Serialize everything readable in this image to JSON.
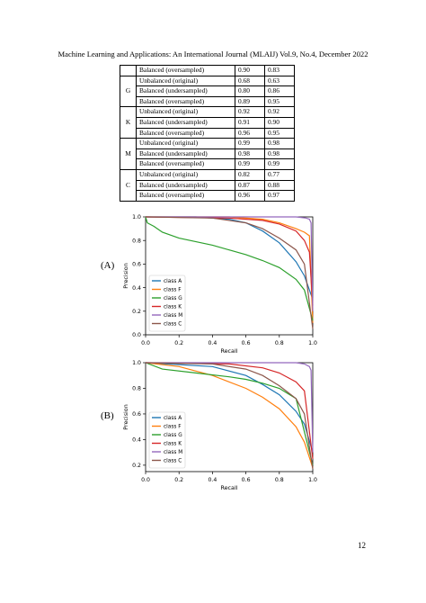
{
  "header": "Machine Learning and Applications: An International Journal (MLAIJ) Vol.9, No.4, December 2022",
  "table": {
    "rows": [
      {
        "group": "",
        "method": "Balanced (oversampled)",
        "v1": "0.90",
        "v2": "0.83"
      },
      {
        "group": "G",
        "method": "Unbalanced (original)",
        "v1": "0.68",
        "v2": "0.63"
      },
      {
        "group": "",
        "method": "Balanced (undersampled)",
        "v1": "0.80",
        "v2": "0.86"
      },
      {
        "group": "",
        "method": "Balanced (oversampled)",
        "v1": "0.89",
        "v2": "0.95"
      },
      {
        "group": "K",
        "method": "Unbalanced (original)",
        "v1": "0.92",
        "v2": "0.92"
      },
      {
        "group": "",
        "method": "Balanced (undersampled)",
        "v1": "0.91",
        "v2": "0.90"
      },
      {
        "group": "",
        "method": "Balanced (oversampled)",
        "v1": "0.96",
        "v2": "0.95"
      },
      {
        "group": "M",
        "method": "Unbalanced (original)",
        "v1": "0.99",
        "v2": "0.98"
      },
      {
        "group": "",
        "method": "Balanced (undersampled)",
        "v1": "0.98",
        "v2": "0.98"
      },
      {
        "group": "",
        "method": "Balanced (oversampled)",
        "v1": "0.99",
        "v2": "0.99"
      },
      {
        "group": "C",
        "method": "Unbalanced (original)",
        "v1": "0.82",
        "v2": "0.77"
      },
      {
        "group": "",
        "method": "Balanced (undersampled)",
        "v1": "0.87",
        "v2": "0.88"
      },
      {
        "group": "",
        "method": "Balanced (oversampled)",
        "v1": "0.96",
        "v2": "0.97"
      }
    ]
  },
  "labels": {
    "a": "(A)",
    "b": "(B)"
  },
  "page_number": "12",
  "chart_data": [
    {
      "type": "line",
      "xlabel": "Recall",
      "ylabel": "Precision",
      "xlim": [
        0.0,
        1.0
      ],
      "ylim": [
        0.0,
        1.0
      ],
      "xticks": [
        "0.0",
        "0.2",
        "0.4",
        "0.6",
        "0.8",
        "1.0"
      ],
      "yticks": [
        "0.0",
        "0.2",
        "0.4",
        "0.6",
        "0.8",
        "1.0"
      ],
      "legend_position": "lower-left",
      "series": [
        {
          "name": "class A",
          "color": "#1f77b4",
          "points": [
            [
              0,
              1
            ],
            [
              0.3,
              1
            ],
            [
              0.5,
              0.98
            ],
            [
              0.6,
              0.95
            ],
            [
              0.7,
              0.88
            ],
            [
              0.8,
              0.78
            ],
            [
              0.9,
              0.62
            ],
            [
              0.95,
              0.5
            ],
            [
              1.0,
              0.3
            ]
          ]
        },
        {
          "name": "class F",
          "color": "#ff7f0e",
          "points": [
            [
              0,
              1
            ],
            [
              0.5,
              1
            ],
            [
              0.7,
              0.98
            ],
            [
              0.8,
              0.95
            ],
            [
              0.9,
              0.9
            ],
            [
              0.95,
              0.87
            ],
            [
              0.98,
              0.84
            ],
            [
              1.0,
              0.1
            ]
          ]
        },
        {
          "name": "class G",
          "color": "#2ca02c",
          "points": [
            [
              0,
              1
            ],
            [
              0.01,
              0.95
            ],
            [
              0.05,
              0.92
            ],
            [
              0.1,
              0.87
            ],
            [
              0.2,
              0.82
            ],
            [
              0.4,
              0.76
            ],
            [
              0.5,
              0.72
            ],
            [
              0.6,
              0.68
            ],
            [
              0.7,
              0.63
            ],
            [
              0.8,
              0.57
            ],
            [
              0.9,
              0.47
            ],
            [
              0.95,
              0.38
            ],
            [
              1.0,
              0.12
            ]
          ]
        },
        {
          "name": "class K",
          "color": "#d62728",
          "points": [
            [
              0,
              1
            ],
            [
              0.5,
              0.99
            ],
            [
              0.7,
              0.97
            ],
            [
              0.8,
              0.94
            ],
            [
              0.9,
              0.88
            ],
            [
              0.95,
              0.8
            ],
            [
              0.98,
              0.7
            ],
            [
              1.0,
              0.25
            ]
          ]
        },
        {
          "name": "class M",
          "color": "#9467bd",
          "points": [
            [
              0,
              1
            ],
            [
              0.9,
              1
            ],
            [
              0.96,
              0.99
            ],
            [
              0.98,
              0.98
            ],
            [
              0.99,
              0.95
            ],
            [
              1.0,
              0.2
            ]
          ]
        },
        {
          "name": "class C",
          "color": "#8c564b",
          "points": [
            [
              0,
              1
            ],
            [
              0.4,
              0.99
            ],
            [
              0.6,
              0.95
            ],
            [
              0.7,
              0.9
            ],
            [
              0.8,
              0.82
            ],
            [
              0.9,
              0.72
            ],
            [
              0.95,
              0.6
            ],
            [
              1.0,
              0.05
            ]
          ]
        }
      ]
    },
    {
      "type": "line",
      "xlabel": "Recall",
      "ylabel": "Precision",
      "xlim": [
        0.0,
        1.0
      ],
      "ylim": [
        0.15,
        1.0
      ],
      "xticks": [
        "0.0",
        "0.2",
        "0.4",
        "0.6",
        "0.8",
        "1.0"
      ],
      "yticks": [
        "0.2",
        "0.4",
        "0.6",
        "0.8",
        "1.0"
      ],
      "legend_position": "lower-left",
      "series": [
        {
          "name": "class A",
          "color": "#1f77b4",
          "points": [
            [
              0,
              1
            ],
            [
              0.4,
              0.97
            ],
            [
              0.6,
              0.9
            ],
            [
              0.7,
              0.83
            ],
            [
              0.8,
              0.75
            ],
            [
              0.9,
              0.62
            ],
            [
              0.95,
              0.52
            ],
            [
              1.0,
              0.3
            ]
          ]
        },
        {
          "name": "class F",
          "color": "#ff7f0e",
          "points": [
            [
              0,
              1
            ],
            [
              0.2,
              0.97
            ],
            [
              0.4,
              0.9
            ],
            [
              0.6,
              0.8
            ],
            [
              0.7,
              0.73
            ],
            [
              0.8,
              0.64
            ],
            [
              0.9,
              0.5
            ],
            [
              0.95,
              0.38
            ],
            [
              1.0,
              0.18
            ]
          ]
        },
        {
          "name": "class G",
          "color": "#2ca02c",
          "points": [
            [
              0,
              1
            ],
            [
              0.1,
              0.95
            ],
            [
              0.3,
              0.92
            ],
            [
              0.5,
              0.89
            ],
            [
              0.6,
              0.87
            ],
            [
              0.7,
              0.84
            ],
            [
              0.8,
              0.8
            ],
            [
              0.9,
              0.72
            ],
            [
              1.0,
              0.2
            ]
          ]
        },
        {
          "name": "class K",
          "color": "#d62728",
          "points": [
            [
              0,
              1
            ],
            [
              0.5,
              0.99
            ],
            [
              0.7,
              0.96
            ],
            [
              0.8,
              0.92
            ],
            [
              0.9,
              0.85
            ],
            [
              0.95,
              0.78
            ],
            [
              1.0,
              0.25
            ]
          ]
        },
        {
          "name": "class M",
          "color": "#9467bd",
          "points": [
            [
              0,
              1
            ],
            [
              0.9,
              1
            ],
            [
              0.95,
              0.99
            ],
            [
              0.98,
              0.97
            ],
            [
              0.99,
              0.94
            ],
            [
              1.0,
              0.3
            ]
          ]
        },
        {
          "name": "class C",
          "color": "#8c564b",
          "points": [
            [
              0,
              1
            ],
            [
              0.4,
              0.99
            ],
            [
              0.6,
              0.95
            ],
            [
              0.7,
              0.9
            ],
            [
              0.8,
              0.82
            ],
            [
              0.9,
              0.72
            ],
            [
              0.95,
              0.6
            ],
            [
              1.0,
              0.17
            ]
          ]
        }
      ]
    }
  ]
}
